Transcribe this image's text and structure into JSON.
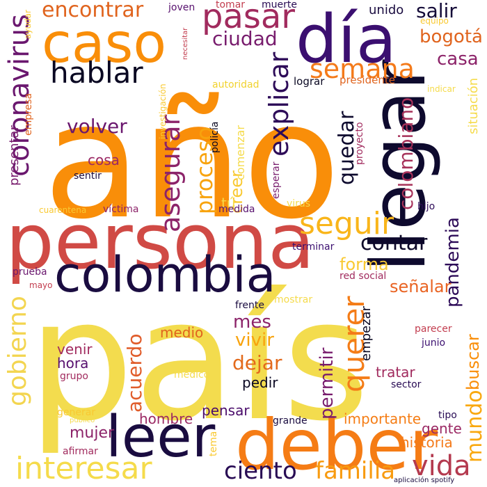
{
  "words": [
    {
      "text": "año",
      "color": "#f98e09"
    },
    {
      "text": "país",
      "color": "#f3dc4e"
    },
    {
      "text": "persona",
      "color": "#d04a45"
    },
    {
      "text": "llegar",
      "color": "#0e0a2e"
    },
    {
      "text": "deber",
      "color": "#f57c15"
    },
    {
      "text": "día",
      "color": "#3b0f70"
    },
    {
      "text": "caso",
      "color": "#f98e09"
    },
    {
      "text": "colombia",
      "color": "#1a0c40"
    },
    {
      "text": "leer",
      "color": "#1a0c40"
    },
    {
      "text": "hablar",
      "color": "#0a0822"
    },
    {
      "text": "pasar",
      "color": "#a12b5e"
    },
    {
      "text": "coronavirus",
      "color": "#6a176e"
    },
    {
      "text": "encontrar",
      "color": "#e0641e"
    },
    {
      "text": "interesar",
      "color": "#f5db4b"
    },
    {
      "text": "semana",
      "color": "#f47a1a"
    },
    {
      "text": "ciudad",
      "color": "#781c6d"
    },
    {
      "text": "gobierno",
      "color": "#f3d550"
    },
    {
      "text": "seguir",
      "color": "#f9b51a"
    },
    {
      "text": "querer",
      "color": "#f47c17"
    },
    {
      "text": "explicar",
      "color": "#2d0b58"
    },
    {
      "text": "colombiano",
      "color": "#a7325a"
    },
    {
      "text": "quedar",
      "color": "#0e0a2e"
    },
    {
      "text": "asegurar",
      "color": "#8c2369"
    },
    {
      "text": "proceso",
      "color": "#f8a30d"
    },
    {
      "text": "volver",
      "color": "#6a176e"
    },
    {
      "text": "contar",
      "color": "#0d0829"
    },
    {
      "text": "vida",
      "color": "#b43a4f"
    },
    {
      "text": "ciento",
      "color": "#280b54"
    },
    {
      "text": "familia",
      "color": "#f89b10"
    },
    {
      "text": "mundo",
      "color": "#f9a80f"
    },
    {
      "text": "permitir",
      "color": "#781c6d"
    },
    {
      "text": "dejar",
      "color": "#e36a1c"
    },
    {
      "text": "vivir",
      "color": "#f8a30d"
    },
    {
      "text": "acuerdo",
      "color": "#e05c2a"
    },
    {
      "text": "pandemia",
      "color": "#2d0b58"
    },
    {
      "text": "buscar",
      "color": "#f98e09"
    },
    {
      "text": "creer",
      "color": "#f9c932"
    },
    {
      "text": "salir",
      "color": "#140b38"
    },
    {
      "text": "bogotá",
      "color": "#e0641e"
    },
    {
      "text": "casa",
      "color": "#8c2369"
    },
    {
      "text": "forma",
      "color": "#f9c932"
    },
    {
      "text": "mes",
      "color": "#8c2369"
    },
    {
      "text": "señalar",
      "color": "#e96322"
    },
    {
      "text": "mujer",
      "color": "#8c2369"
    },
    {
      "text": "hombre",
      "color": "#9b2964"
    },
    {
      "text": "importante",
      "color": "#f57d15"
    },
    {
      "text": "medio",
      "color": "#e0641e"
    },
    {
      "text": "hora",
      "color": "#57106e"
    },
    {
      "text": "venir",
      "color": "#a12b5e"
    },
    {
      "text": "tratar",
      "color": "#a12b5e"
    },
    {
      "text": "cosa",
      "color": "#9b2964"
    },
    {
      "text": "pedir",
      "color": "#0a0822"
    },
    {
      "text": "pensar",
      "color": "#4a0c6b"
    },
    {
      "text": "gente",
      "color": "#9b2964"
    },
    {
      "text": "historia",
      "color": "#f47a1a"
    },
    {
      "text": "empezar",
      "color": "#0a0822"
    },
    {
      "text": "presentar",
      "color": "#781c6d"
    },
    {
      "text": "unido",
      "color": "#1a0c40"
    },
    {
      "text": "lograr",
      "color": "#0a0822"
    },
    {
      "text": "presidente",
      "color": "#e0641e"
    },
    {
      "text": "autoridad",
      "color": "#f1d22e"
    },
    {
      "text": "empresa",
      "color": "#e0641e"
    },
    {
      "text": "situación",
      "color": "#f5db4b"
    },
    {
      "text": "tú",
      "color": "#f5db4b"
    },
    {
      "text": "comenzar",
      "color": "#f5db4b"
    },
    {
      "text": "policía",
      "color": "#0a0822"
    },
    {
      "text": "proyecto",
      "color": "#a12b5e"
    },
    {
      "text": "esperar",
      "color": "#781c6d"
    },
    {
      "text": "virus",
      "color": "#f5db4b"
    },
    {
      "text": "hijo",
      "color": "#2d0b58"
    },
    {
      "text": "terminar",
      "color": "#3b0f70"
    },
    {
      "text": "víctima",
      "color": "#8c2369"
    },
    {
      "text": "cuarentena",
      "color": "#f9c932"
    },
    {
      "text": "medida",
      "color": "#57106e"
    },
    {
      "text": "sentir",
      "color": "#1a0c40"
    },
    {
      "text": "prueba",
      "color": "#6a176e"
    },
    {
      "text": "mayo",
      "color": "#c23c4e"
    },
    {
      "text": "frente",
      "color": "#1a0c40"
    },
    {
      "text": "mostrar",
      "color": "#f5db4b"
    },
    {
      "text": "red social",
      "color": "#a12b5e"
    },
    {
      "text": "parecer",
      "color": "#c23c4e"
    },
    {
      "text": "junio",
      "color": "#3b0f70"
    },
    {
      "text": "sector",
      "color": "#280b54"
    },
    {
      "text": "grupo",
      "color": "#a12b5e"
    },
    {
      "text": "médico",
      "color": "#f5db4b"
    },
    {
      "text": "generar",
      "color": "#f9c932"
    },
    {
      "text": "público",
      "color": "#f5db4b"
    },
    {
      "text": "grande",
      "color": "#1a0c40"
    },
    {
      "text": "tipo",
      "color": "#280b54"
    },
    {
      "text": "afirmar",
      "color": "#a12b5e"
    },
    {
      "text": "tema",
      "color": "#f9c932"
    },
    {
      "text": "aplicación spotify",
      "color": "#1a0c40"
    },
    {
      "text": "joven",
      "color": "#57106e"
    },
    {
      "text": "tomar",
      "color": "#c23c4e"
    },
    {
      "text": "muerte",
      "color": "#280b54"
    },
    {
      "text": "necesitar",
      "color": "#c23c4e"
    },
    {
      "text": "ayudar",
      "color": "#f9c932"
    },
    {
      "text": "equipo",
      "color": "#f9c932"
    },
    {
      "text": "indicar",
      "color": "#f5db4b"
    },
    {
      "text": "investigación",
      "color": "#f9c932"
    }
  ]
}
